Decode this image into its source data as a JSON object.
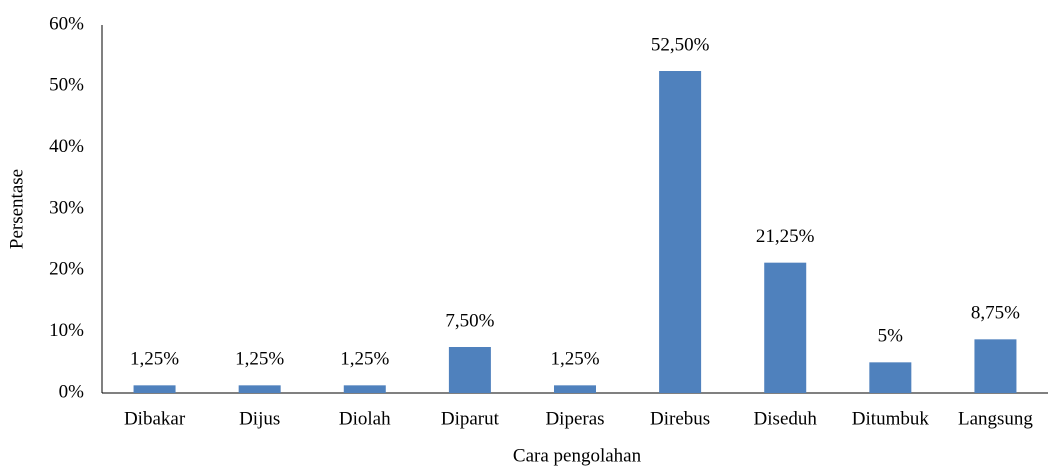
{
  "chart_data": {
    "type": "bar",
    "x_label": "Cara pengolahan",
    "y_label": "Persentase",
    "categories": [
      "Dibakar",
      "Dijus",
      "Diolah",
      "Diparut",
      "Diperas",
      "Direbus",
      "Diseduh",
      "Ditumbuk",
      "Langsung"
    ],
    "values": [
      1.25,
      1.25,
      1.25,
      7.5,
      1.25,
      52.5,
      21.25,
      5,
      8.75
    ],
    "value_labels": [
      "1,25%",
      "1,25%",
      "1,25%",
      "7,50%",
      "1,25%",
      "52,50%",
      "21,25%",
      "5%",
      "8,75%"
    ],
    "color": "#4f81bd",
    "ylim": [
      0,
      60
    ],
    "yticks": [
      {
        "value": 0,
        "label": "0%"
      },
      {
        "value": 10,
        "label": "10%"
      },
      {
        "value": 20,
        "label": "20%"
      },
      {
        "value": 30,
        "label": "30%"
      },
      {
        "value": 40,
        "label": "40%"
      },
      {
        "value": 50,
        "label": "50%"
      },
      {
        "value": 60,
        "label": "60%"
      }
    ],
    "grid": false
  }
}
